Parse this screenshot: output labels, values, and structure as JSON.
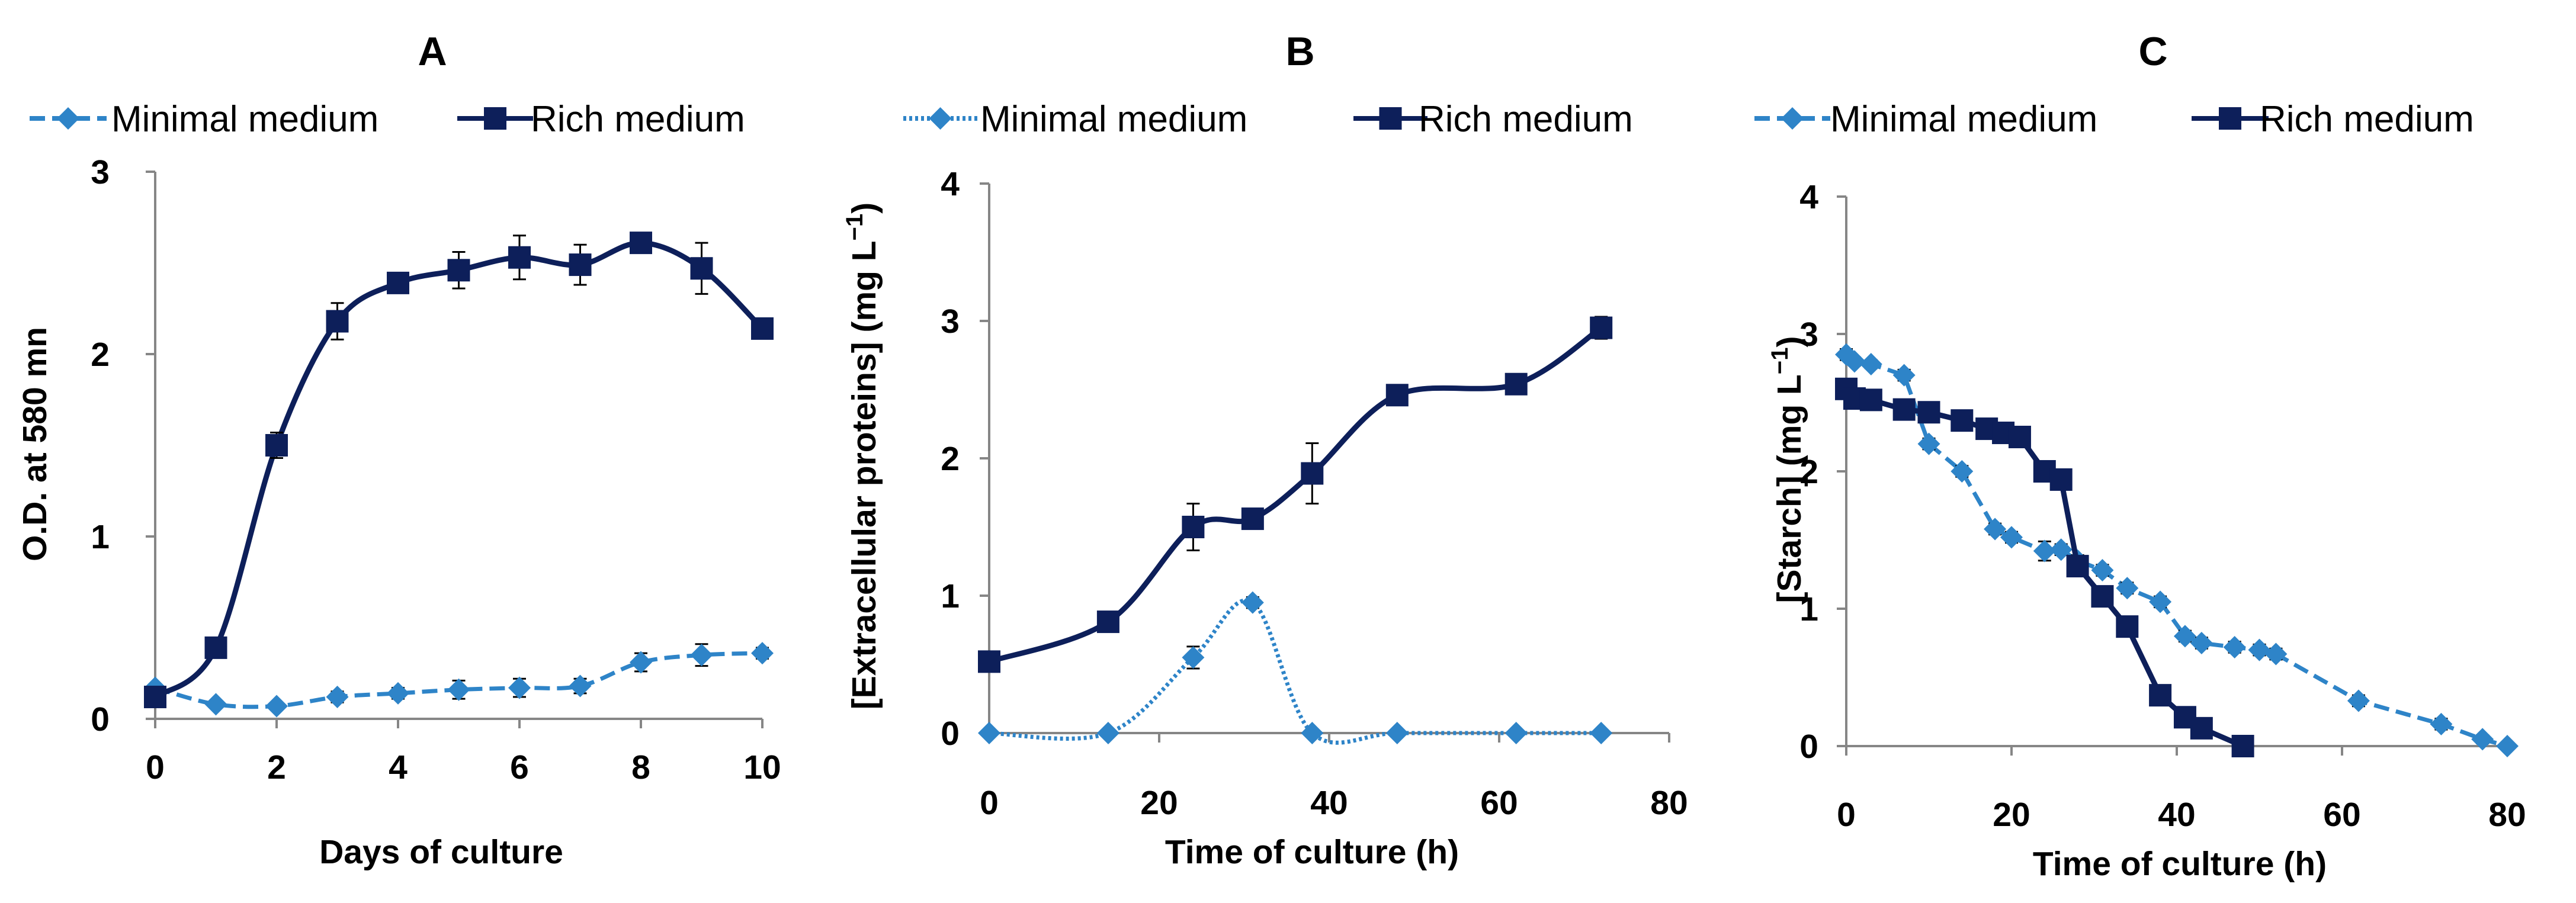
{
  "colors": {
    "minimal": "#2E84C8",
    "rich": "#0D1F5A",
    "axis": "#868686",
    "text": "#000000"
  },
  "chart_data": [
    {
      "type": "line",
      "title": "A",
      "xlabel": "Days of culture",
      "ylabel": "O.D. at  580 mn",
      "xlim": [
        0,
        10
      ],
      "ylim": [
        0,
        3
      ],
      "xticks": [
        0,
        2,
        4,
        6,
        8,
        10
      ],
      "yticks": [
        0,
        1,
        2,
        3
      ],
      "legend": "top",
      "series": [
        {
          "name": "Minimal medium",
          "style": "dashed",
          "marker": "diamond",
          "x": [
            0,
            1,
            2,
            3,
            4,
            5,
            6,
            7,
            8,
            9,
            10
          ],
          "y": [
            0.17,
            0.08,
            0.07,
            0.12,
            0.14,
            0.16,
            0.17,
            0.18,
            0.31,
            0.35,
            0.36
          ],
          "err": [
            0.02,
            0.02,
            0.02,
            0.03,
            0.03,
            0.05,
            0.05,
            0.04,
            0.05,
            0.06,
            0.03
          ]
        },
        {
          "name": "Rich medium",
          "style": "solid",
          "marker": "square",
          "x": [
            0,
            1,
            2,
            3,
            4,
            5,
            6,
            7,
            8,
            9,
            10
          ],
          "y": [
            0.12,
            0.39,
            1.5,
            2.18,
            2.39,
            2.46,
            2.53,
            2.49,
            2.61,
            2.47,
            2.14
          ],
          "err": [
            0.03,
            0.04,
            0.07,
            0.1,
            0.05,
            0.1,
            0.12,
            0.11,
            0.05,
            0.14,
            0.04
          ]
        }
      ]
    },
    {
      "type": "line",
      "title": "B",
      "xlabel": "Time of culture (h)",
      "ylabel": "[Extracellular proteins] (mg L",
      "ylabel_sup": "−1",
      "ylabel_close": ")",
      "xlim": [
        0,
        80
      ],
      "ylim": [
        0,
        4
      ],
      "xticks": [
        0,
        20,
        40,
        60,
        80
      ],
      "yticks": [
        0,
        1,
        2,
        3,
        4
      ],
      "legend": "top",
      "series": [
        {
          "name": "Minimal medium",
          "style": "dotted",
          "marker": "diamond",
          "x": [
            0,
            14,
            24,
            31,
            38,
            48,
            62,
            72
          ],
          "y": [
            0,
            0,
            0.55,
            0.95,
            0,
            0,
            0,
            0
          ],
          "err": [
            0,
            0,
            0.08,
            0.04,
            0,
            0,
            0,
            0
          ]
        },
        {
          "name": "Rich medium",
          "style": "solid",
          "marker": "square",
          "x": [
            0,
            14,
            24,
            31,
            38,
            48,
            62,
            72
          ],
          "y": [
            0.52,
            0.81,
            1.5,
            1.56,
            1.89,
            2.46,
            2.54,
            2.95
          ],
          "err": [
            0.04,
            0.05,
            0.17,
            0.05,
            0.22,
            0.04,
            0.04,
            0.08
          ]
        }
      ]
    },
    {
      "type": "line",
      "title": "C",
      "xlabel": "Time of culture (h)",
      "ylabel": "[Starch] (mg L",
      "ylabel_sup": "−1",
      "ylabel_close": ")",
      "xlim": [
        0,
        80
      ],
      "ylim": [
        0,
        4
      ],
      "xticks": [
        0,
        20,
        40,
        60,
        80
      ],
      "yticks": [
        0,
        1,
        2,
        3,
        4
      ],
      "legend": "top",
      "series": [
        {
          "name": "Minimal medium",
          "style": "dashed",
          "marker": "diamond",
          "x": [
            0,
            1,
            3,
            7,
            10,
            14,
            18,
            20,
            24,
            26,
            28,
            31,
            34,
            38,
            41,
            43,
            47,
            50,
            52,
            62,
            72,
            77,
            80
          ],
          "y": [
            2.85,
            2.8,
            2.78,
            2.7,
            2.2,
            2.0,
            1.58,
            1.52,
            1.42,
            1.43,
            1.35,
            1.28,
            1.15,
            1.05,
            0.8,
            0.75,
            0.72,
            0.7,
            0.67,
            0.33,
            0.16,
            0.05,
            0.0
          ],
          "err": [
            0.04,
            0.03,
            0.03,
            0.04,
            0.04,
            0.04,
            0.04,
            0.04,
            0.07,
            0.04,
            0.04,
            0.04,
            0.04,
            0.04,
            0.04,
            0.04,
            0.04,
            0.04,
            0.04,
            0.04,
            0.04,
            0.03,
            0.02
          ]
        },
        {
          "name": "Rich medium",
          "style": "solid",
          "marker": "square",
          "x": [
            0,
            1,
            3,
            7,
            10,
            14,
            17,
            19,
            21,
            24,
            26,
            28,
            31,
            34,
            38,
            41,
            43,
            48
          ],
          "y": [
            2.6,
            2.53,
            2.52,
            2.45,
            2.43,
            2.37,
            2.31,
            2.28,
            2.25,
            2.0,
            1.94,
            1.31,
            1.09,
            0.87,
            0.37,
            0.21,
            0.13,
            0.0
          ],
          "err": [
            0.04,
            0.03,
            0.03,
            0.04,
            0.04,
            0.04,
            0.04,
            0.04,
            0.04,
            0.04,
            0.04,
            0.06,
            0.05,
            0.04,
            0.04,
            0.04,
            0.04,
            0.02
          ]
        }
      ]
    }
  ]
}
